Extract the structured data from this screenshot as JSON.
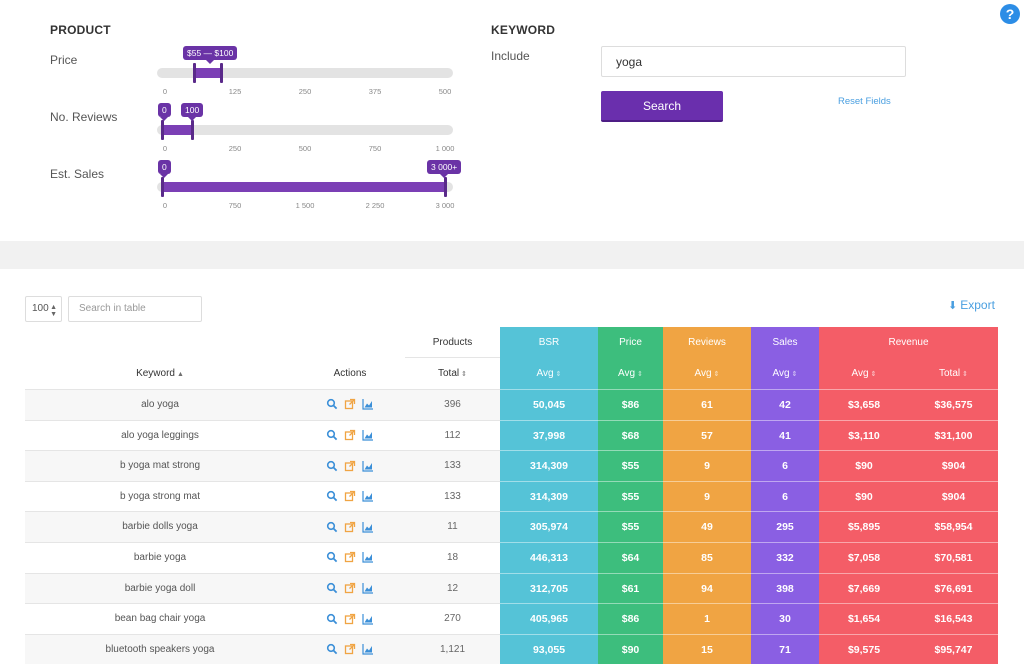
{
  "product": {
    "title": "PRODUCT",
    "filters": [
      {
        "label": "Price",
        "bubble_left": "$55 — $100",
        "bubble_right": "",
        "ticks": [
          "0",
          "125",
          "250",
          "375",
          "500"
        ],
        "range": [
          0.12,
          0.21
        ]
      },
      {
        "label": "No. Reviews",
        "bubble_left": "0",
        "bubble_right": "100",
        "ticks": [
          "0",
          "250",
          "500",
          "750",
          "1 000"
        ],
        "range": [
          0.0,
          0.11
        ]
      },
      {
        "label": "Est. Sales",
        "bubble_left": "0",
        "bubble_right": "3 000+",
        "ticks": [
          "0",
          "750",
          "1 500",
          "2 250",
          "3 000"
        ],
        "range": [
          0.0,
          0.975
        ]
      }
    ]
  },
  "keyword": {
    "title": "KEYWORD",
    "include_label": "Include",
    "value": "yoga",
    "search_label": "Search",
    "reset_label": "Reset Fields"
  },
  "help_label": "?",
  "toolbar": {
    "per_page": "100",
    "search_placeholder": "Search in table",
    "export_label": "Export"
  },
  "table": {
    "group_headers": {
      "products": "Products",
      "bsr": "BSR",
      "price": "Price",
      "reviews": "Reviews",
      "sales": "Sales",
      "revenue": "Revenue"
    },
    "columns": {
      "keyword": "Keyword",
      "actions": "Actions",
      "total": "Total",
      "avg": "Avg",
      "rev_total": "Total"
    },
    "rows": [
      {
        "keyword": "alo yoga",
        "total": "396",
        "bsr": "50,045",
        "price": "$86",
        "reviews": "61",
        "sales": "42",
        "rev_avg": "$3,658",
        "rev_total": "$36,575"
      },
      {
        "keyword": "alo yoga leggings",
        "total": "112",
        "bsr": "37,998",
        "price": "$68",
        "reviews": "57",
        "sales": "41",
        "rev_avg": "$3,110",
        "rev_total": "$31,100"
      },
      {
        "keyword": "b yoga mat strong",
        "total": "133",
        "bsr": "314,309",
        "price": "$55",
        "reviews": "9",
        "sales": "6",
        "rev_avg": "$90",
        "rev_total": "$904"
      },
      {
        "keyword": "b yoga strong mat",
        "total": "133",
        "bsr": "314,309",
        "price": "$55",
        "reviews": "9",
        "sales": "6",
        "rev_avg": "$90",
        "rev_total": "$904"
      },
      {
        "keyword": "barbie dolls yoga",
        "total": "11",
        "bsr": "305,974",
        "price": "$55",
        "reviews": "49",
        "sales": "295",
        "rev_avg": "$5,895",
        "rev_total": "$58,954"
      },
      {
        "keyword": "barbie yoga",
        "total": "18",
        "bsr": "446,313",
        "price": "$64",
        "reviews": "85",
        "sales": "332",
        "rev_avg": "$7,058",
        "rev_total": "$70,581"
      },
      {
        "keyword": "barbie yoga doll",
        "total": "12",
        "bsr": "312,705",
        "price": "$61",
        "reviews": "94",
        "sales": "398",
        "rev_avg": "$7,669",
        "rev_total": "$76,691"
      },
      {
        "keyword": "bean bag chair yoga",
        "total": "270",
        "bsr": "405,965",
        "price": "$86",
        "reviews": "1",
        "sales": "30",
        "rev_avg": "$1,654",
        "rev_total": "$16,543"
      },
      {
        "keyword": "bluetooth speakers yoga",
        "total": "1,121",
        "bsr": "93,055",
        "price": "$90",
        "reviews": "15",
        "sales": "71",
        "rev_avg": "$9,575",
        "rev_total": "$95,747"
      }
    ]
  },
  "colors": {
    "accent": "#6a2fad",
    "bsr": "#55c3d7",
    "price": "#3dbe7d",
    "reviews": "#f0a443",
    "sales": "#8a5fe3",
    "revenue": "#f45d67",
    "link": "#4a9fe0"
  },
  "icons": {
    "view": "search-icon",
    "open": "external-link-icon",
    "chart": "chart-icon",
    "sort": "sort-icon",
    "download": "download-icon",
    "help": "help-icon"
  }
}
